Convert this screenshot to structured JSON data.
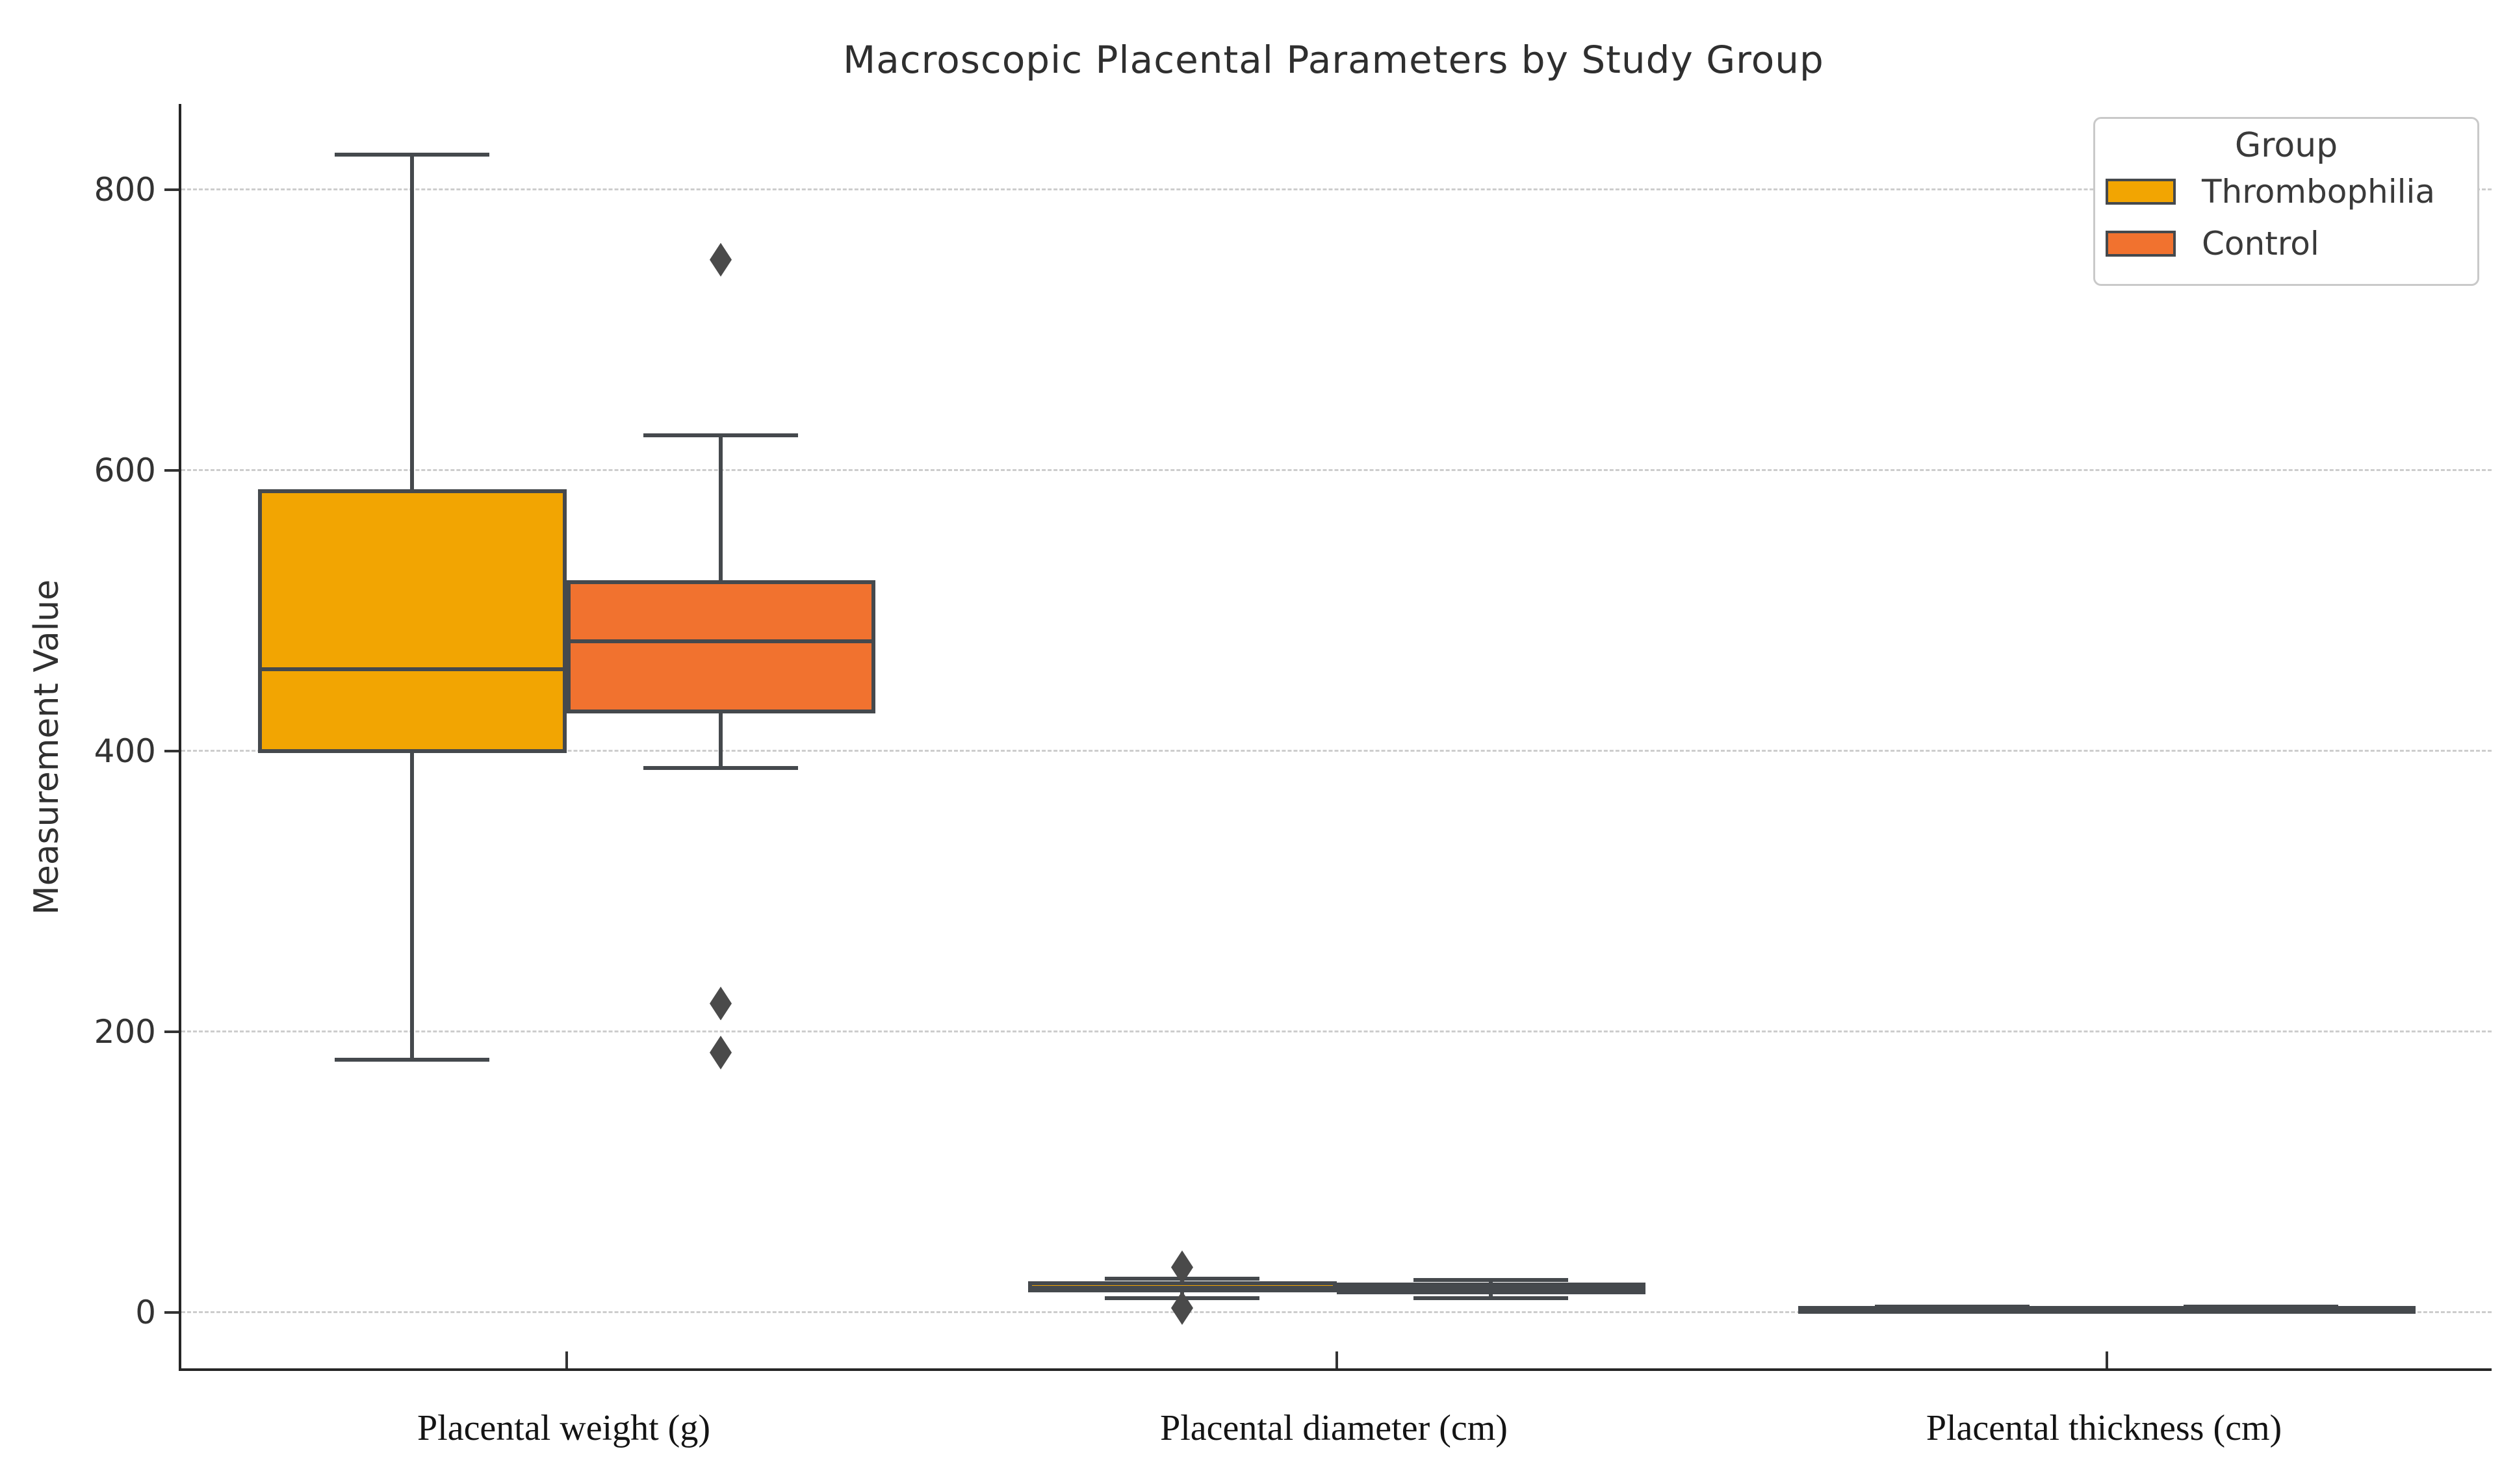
{
  "chart_data": {
    "type": "box",
    "title": "Macroscopic Placental Parameters by Study Group",
    "xlabel": "",
    "ylabel": "Measurement Value",
    "ylim": [
      -40,
      861
    ],
    "yticks": [
      0,
      200,
      400,
      600,
      800
    ],
    "grid": "horizontal-dashed",
    "categories": [
      "Placental weight (g)",
      "Placental diameter (cm)",
      "Placental thickness (cm)"
    ],
    "legend": {
      "title": "Group",
      "position": "upper right"
    },
    "series": [
      {
        "name": "Thrombophilia",
        "color": "#F2A502",
        "boxes": [
          {
            "whisker_low": 180,
            "q1": 400,
            "median": 458,
            "q3": 585,
            "whisker_high": 825,
            "outliers": []
          },
          {
            "whisker_low": 10,
            "q1": 15.5,
            "median": 17.5,
            "q3": 20.5,
            "whisker_high": 24,
            "outliers": [
              32,
              3
            ]
          },
          {
            "whisker_low": 1.2,
            "q1": 2.0,
            "median": 2.4,
            "q3": 2.9,
            "whisker_high": 4.0,
            "outliers": []
          }
        ]
      },
      {
        "name": "Control",
        "color": "#F1722F",
        "boxes": [
          {
            "whisker_low": 388,
            "q1": 428,
            "median": 478,
            "q3": 520,
            "whisker_high": 625,
            "outliers": [
              750,
              220,
              185
            ]
          },
          {
            "whisker_low": 10,
            "q1": 14,
            "median": 17,
            "q3": 19.5,
            "whisker_high": 23,
            "outliers": []
          },
          {
            "whisker_low": 1.4,
            "q1": 2.1,
            "median": 2.5,
            "q3": 2.9,
            "whisker_high": 3.8,
            "outliers": []
          }
        ]
      }
    ],
    "style": {
      "box_border_color": "#45494d",
      "flier_color": "#4a4a4a",
      "grid_color": "#cdcdcd",
      "spine_color": "#262626",
      "flier_marker": "diamond"
    }
  }
}
